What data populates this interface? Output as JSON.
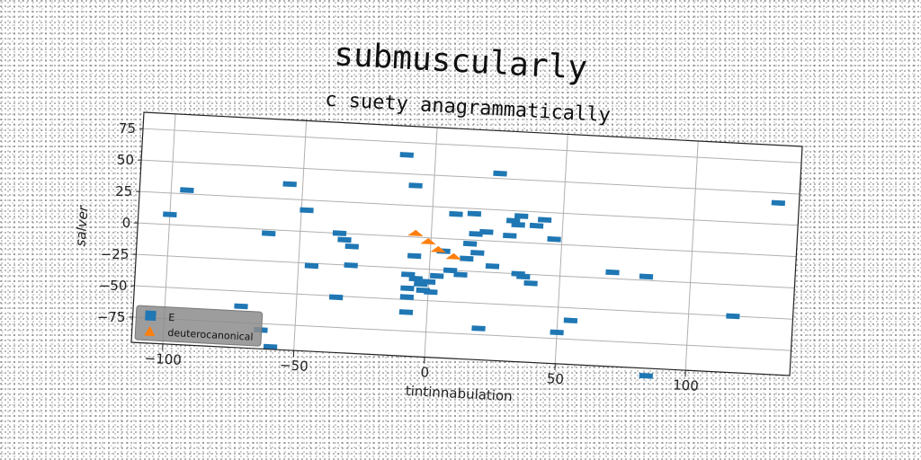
{
  "chart_data": {
    "type": "scatter",
    "title": "submuscularly",
    "subtitle": "c suety anagrammatically",
    "xlabel": "tintinnabulation",
    "ylabel": "salver",
    "xlim": [
      -112,
      140
    ],
    "ylim": [
      -95,
      88
    ],
    "xticks": [
      -100,
      -50,
      0,
      50,
      100
    ],
    "xtick_labels": [
      "−100",
      "−50",
      "0",
      "50",
      "100"
    ],
    "yticks": [
      75,
      50,
      25,
      0,
      -25,
      -50,
      -75
    ],
    "ytick_labels": [
      "75",
      "50",
      "25",
      "0",
      "−25",
      "−50",
      "−75"
    ],
    "grid": true,
    "legend_position": "lower-left",
    "series": [
      {
        "name": "E",
        "marker": "square",
        "color": "#1f77b4",
        "points": [
          [
            -100,
            8
          ],
          [
            -94,
            28
          ],
          [
            -71,
            -62
          ],
          [
            -63,
            -80
          ],
          [
            -62,
            -3
          ],
          [
            -59,
            -93
          ],
          [
            -55,
            37
          ],
          [
            -48,
            17
          ],
          [
            -45,
            -27
          ],
          [
            -35,
            -51
          ],
          [
            -35,
            0
          ],
          [
            -33,
            -5
          ],
          [
            -30,
            -25
          ],
          [
            -30,
            -10
          ],
          [
            -11,
            65
          ],
          [
            -7,
            41
          ],
          [
            -6,
            -15
          ],
          [
            -8,
            -30
          ],
          [
            -8,
            -41
          ],
          [
            -8,
            -48
          ],
          [
            -8,
            -60
          ],
          [
            -5,
            -33
          ],
          [
            -3,
            -37
          ],
          [
            -2,
            -42
          ],
          [
            0,
            -35
          ],
          [
            1,
            -43
          ],
          [
            3,
            -30
          ],
          [
            5,
            -10
          ],
          [
            8,
            -25
          ],
          [
            9,
            20
          ],
          [
            12,
            -28
          ],
          [
            14,
            -15
          ],
          [
            15,
            -3
          ],
          [
            16,
            21
          ],
          [
            17,
            5
          ],
          [
            18,
            -10
          ],
          [
            20,
            -70
          ],
          [
            21,
            7
          ],
          [
            24,
            -20
          ],
          [
            25,
            54
          ],
          [
            30,
            5
          ],
          [
            31,
            17
          ],
          [
            33,
            14
          ],
          [
            34,
            -25
          ],
          [
            34,
            21
          ],
          [
            36,
            -27
          ],
          [
            39,
            -32
          ],
          [
            40,
            14
          ],
          [
            43,
            19
          ],
          [
            47,
            4
          ],
          [
            50,
            -70
          ],
          [
            55,
            -60
          ],
          [
            70,
            -20
          ],
          [
            83,
            -22
          ],
          [
            85,
            -101
          ],
          [
            117,
            -50
          ],
          [
            132,
            42
          ]
        ]
      },
      {
        "name": "deuterocanonical",
        "marker": "triangle",
        "color": "#ff7f0e",
        "points": [
          [
            -6,
            3
          ],
          [
            -1,
            -3
          ],
          [
            3,
            -9
          ],
          [
            9,
            -14
          ]
        ]
      }
    ]
  }
}
